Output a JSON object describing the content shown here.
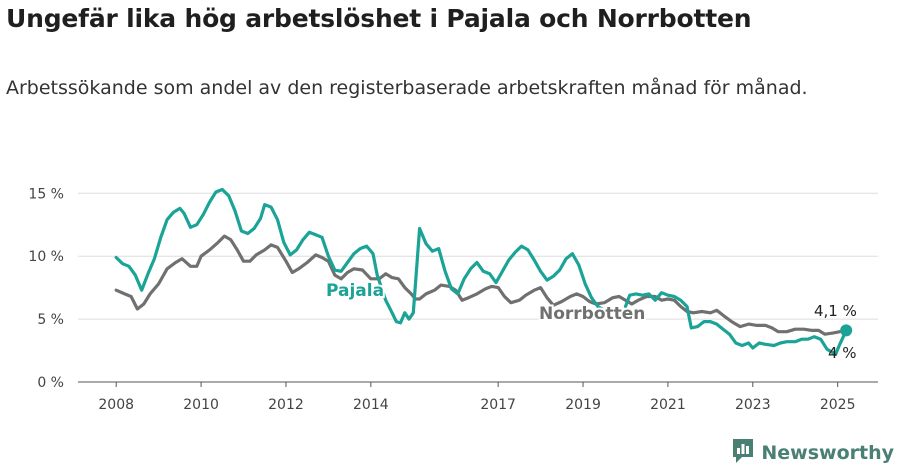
{
  "header": {
    "title": "Ungefär lika hög arbetslöshet i Pajala och Norrbotten",
    "subtitle": "Arbetssökande som andel av den registerbaserade arbetskraften månad för månad."
  },
  "brand": {
    "name": "Newsworthy",
    "icon": "newsworthy-logo-icon",
    "color": "#4a7f74"
  },
  "chart_data": {
    "type": "line",
    "x_unit": "year",
    "xlim": [
      2007.1,
      2025.95
    ],
    "ylim": [
      0,
      15.5
    ],
    "y_ticks": [
      {
        "value": 0,
        "label": "0 %"
      },
      {
        "value": 5,
        "label": "5 %"
      },
      {
        "value": 10,
        "label": "10 %"
      },
      {
        "value": 15,
        "label": "15 %"
      }
    ],
    "x_ticks": [
      {
        "value": 2008,
        "label": "2008"
      },
      {
        "value": 2010,
        "label": "2010"
      },
      {
        "value": 2012,
        "label": "2012"
      },
      {
        "value": 2014,
        "label": "2014"
      },
      {
        "value": 2017,
        "label": "2017"
      },
      {
        "value": 2019,
        "label": "2019"
      },
      {
        "value": 2021,
        "label": "2021"
      },
      {
        "value": 2023,
        "label": "2023"
      },
      {
        "value": 2025,
        "label": "2025"
      }
    ],
    "grid": "horizontal",
    "series": [
      {
        "name": "Norrbotten",
        "color": "#707070",
        "end_label": "4 %",
        "points": [
          [
            2008.0,
            7.3
          ],
          [
            2008.2,
            7.0
          ],
          [
            2008.35,
            6.8
          ],
          [
            2008.5,
            5.8
          ],
          [
            2008.65,
            6.2
          ],
          [
            2008.8,
            7.0
          ],
          [
            2009.0,
            7.8
          ],
          [
            2009.2,
            9.0
          ],
          [
            2009.4,
            9.5
          ],
          [
            2009.55,
            9.8
          ],
          [
            2009.75,
            9.2
          ],
          [
            2009.9,
            9.2
          ],
          [
            2010.0,
            10.0
          ],
          [
            2010.2,
            10.5
          ],
          [
            2010.4,
            11.1
          ],
          [
            2010.55,
            11.6
          ],
          [
            2010.7,
            11.3
          ],
          [
            2010.85,
            10.5
          ],
          [
            2011.0,
            9.6
          ],
          [
            2011.15,
            9.6
          ],
          [
            2011.3,
            10.1
          ],
          [
            2011.5,
            10.5
          ],
          [
            2011.65,
            10.9
          ],
          [
            2011.8,
            10.7
          ],
          [
            2012.0,
            9.6
          ],
          [
            2012.15,
            8.7
          ],
          [
            2012.3,
            9.0
          ],
          [
            2012.5,
            9.5
          ],
          [
            2012.7,
            10.1
          ],
          [
            2012.85,
            9.9
          ],
          [
            2013.0,
            9.6
          ],
          [
            2013.15,
            8.5
          ],
          [
            2013.3,
            8.2
          ],
          [
            2013.45,
            8.7
          ],
          [
            2013.6,
            9.0
          ],
          [
            2013.8,
            8.9
          ],
          [
            2014.0,
            8.2
          ],
          [
            2014.2,
            8.2
          ],
          [
            2014.35,
            8.6
          ],
          [
            2014.5,
            8.3
          ],
          [
            2014.65,
            8.2
          ],
          [
            2014.8,
            7.5
          ],
          [
            2014.95,
            7.0
          ],
          [
            2015.05,
            6.6
          ],
          [
            2015.15,
            6.6
          ],
          [
            2015.3,
            7.0
          ],
          [
            2015.5,
            7.3
          ],
          [
            2015.65,
            7.7
          ],
          [
            2015.85,
            7.6
          ],
          [
            2016.0,
            7.3
          ],
          [
            2016.15,
            6.5
          ],
          [
            2016.3,
            6.7
          ],
          [
            2016.5,
            7.0
          ],
          [
            2016.7,
            7.4
          ],
          [
            2016.85,
            7.6
          ],
          [
            2017.0,
            7.5
          ],
          [
            2017.15,
            6.8
          ],
          [
            2017.3,
            6.3
          ],
          [
            2017.5,
            6.5
          ],
          [
            2017.65,
            6.9
          ],
          [
            2017.85,
            7.3
          ],
          [
            2018.0,
            7.5
          ],
          [
            2018.15,
            6.7
          ],
          [
            2018.3,
            6.1
          ],
          [
            2018.5,
            6.4
          ],
          [
            2018.7,
            6.8
          ],
          [
            2018.85,
            7.0
          ],
          [
            2019.0,
            6.8
          ],
          [
            2019.15,
            6.4
          ],
          [
            2019.3,
            6.2
          ],
          [
            2019.5,
            6.3
          ],
          [
            2019.7,
            6.7
          ],
          [
            2019.85,
            6.8
          ],
          [
            2020.0,
            6.5
          ],
          [
            2020.15,
            6.2
          ],
          [
            2020.3,
            6.5
          ],
          [
            2020.5,
            6.8
          ],
          [
            2020.7,
            6.8
          ],
          [
            2020.85,
            6.5
          ],
          [
            2021.0,
            6.6
          ],
          [
            2021.15,
            6.5
          ],
          [
            2021.3,
            6.0
          ],
          [
            2021.45,
            5.6
          ],
          [
            2021.6,
            5.5
          ],
          [
            2021.8,
            5.6
          ],
          [
            2022.0,
            5.5
          ],
          [
            2022.15,
            5.7
          ],
          [
            2022.3,
            5.3
          ],
          [
            2022.5,
            4.8
          ],
          [
            2022.7,
            4.4
          ],
          [
            2022.9,
            4.6
          ],
          [
            2023.1,
            4.5
          ],
          [
            2023.3,
            4.5
          ],
          [
            2023.45,
            4.3
          ],
          [
            2023.6,
            4.0
          ],
          [
            2023.8,
            4.0
          ],
          [
            2024.0,
            4.2
          ],
          [
            2024.2,
            4.2
          ],
          [
            2024.4,
            4.1
          ],
          [
            2024.55,
            4.1
          ],
          [
            2024.7,
            3.8
          ],
          [
            2024.9,
            3.9
          ],
          [
            2025.05,
            4.0
          ]
        ]
      },
      {
        "name": "Pajala",
        "color": "#1aa396",
        "end_label": "4,1 %",
        "points": [
          [
            2008.0,
            9.9
          ],
          [
            2008.15,
            9.4
          ],
          [
            2008.3,
            9.2
          ],
          [
            2008.45,
            8.5
          ],
          [
            2008.6,
            7.3
          ],
          [
            2008.75,
            8.6
          ],
          [
            2008.9,
            9.8
          ],
          [
            2009.05,
            11.5
          ],
          [
            2009.2,
            12.9
          ],
          [
            2009.35,
            13.5
          ],
          [
            2009.5,
            13.8
          ],
          [
            2009.6,
            13.4
          ],
          [
            2009.75,
            12.3
          ],
          [
            2009.9,
            12.5
          ],
          [
            2010.05,
            13.3
          ],
          [
            2010.2,
            14.3
          ],
          [
            2010.35,
            15.1
          ],
          [
            2010.5,
            15.3
          ],
          [
            2010.65,
            14.8
          ],
          [
            2010.8,
            13.6
          ],
          [
            2010.95,
            12.0
          ],
          [
            2011.1,
            11.8
          ],
          [
            2011.25,
            12.2
          ],
          [
            2011.4,
            13.0
          ],
          [
            2011.5,
            14.1
          ],
          [
            2011.65,
            13.9
          ],
          [
            2011.8,
            12.9
          ],
          [
            2011.95,
            11.1
          ],
          [
            2012.1,
            10.1
          ],
          [
            2012.25,
            10.5
          ],
          [
            2012.4,
            11.3
          ],
          [
            2012.55,
            11.9
          ],
          [
            2012.7,
            11.7
          ],
          [
            2012.85,
            11.5
          ],
          [
            2013.0,
            10.0
          ],
          [
            2013.15,
            8.9
          ],
          [
            2013.3,
            8.8
          ],
          [
            2013.45,
            9.5
          ],
          [
            2013.6,
            10.2
          ],
          [
            2013.75,
            10.6
          ],
          [
            2013.9,
            10.8
          ],
          [
            2014.05,
            10.2
          ],
          [
            2014.15,
            8.5
          ],
          [
            2014.35,
            6.5
          ],
          [
            2014.5,
            5.5
          ],
          [
            2014.6,
            4.8
          ],
          [
            2014.7,
            4.7
          ],
          [
            2014.8,
            5.5
          ],
          [
            2014.9,
            5.0
          ],
          [
            2015.0,
            5.5
          ],
          [
            2015.15,
            12.2
          ],
          [
            2015.3,
            11.0
          ],
          [
            2015.45,
            10.4
          ],
          [
            2015.6,
            10.6
          ],
          [
            2015.75,
            8.8
          ],
          [
            2015.9,
            7.4
          ],
          [
            2016.05,
            7.0
          ],
          [
            2016.2,
            8.2
          ],
          [
            2016.35,
            9.0
          ],
          [
            2016.5,
            9.5
          ],
          [
            2016.65,
            8.8
          ],
          [
            2016.8,
            8.6
          ],
          [
            2016.95,
            7.9
          ],
          [
            2017.1,
            8.8
          ],
          [
            2017.25,
            9.7
          ],
          [
            2017.4,
            10.3
          ],
          [
            2017.55,
            10.8
          ],
          [
            2017.7,
            10.5
          ],
          [
            2017.85,
            9.7
          ],
          [
            2018.0,
            8.8
          ],
          [
            2018.15,
            8.1
          ],
          [
            2018.3,
            8.4
          ],
          [
            2018.45,
            8.9
          ],
          [
            2018.6,
            9.8
          ],
          [
            2018.75,
            10.2
          ],
          [
            2018.9,
            9.3
          ],
          [
            2019.05,
            7.8
          ],
          [
            2019.2,
            6.7
          ],
          [
            2019.35,
            6.0
          ],
          [
            2019.45,
            5.8
          ],
          [
            2020.0,
            6.0
          ],
          [
            2020.1,
            6.9
          ],
          [
            2020.25,
            7.0
          ],
          [
            2020.4,
            6.9
          ],
          [
            2020.55,
            7.0
          ],
          [
            2020.7,
            6.5
          ],
          [
            2020.85,
            7.1
          ],
          [
            2021.0,
            6.9
          ],
          [
            2021.15,
            6.8
          ],
          [
            2021.3,
            6.5
          ],
          [
            2021.45,
            6.0
          ],
          [
            2021.55,
            4.3
          ],
          [
            2021.7,
            4.4
          ],
          [
            2021.85,
            4.8
          ],
          [
            2022.0,
            4.8
          ],
          [
            2022.15,
            4.6
          ],
          [
            2022.3,
            4.2
          ],
          [
            2022.45,
            3.8
          ],
          [
            2022.6,
            3.1
          ],
          [
            2022.75,
            2.9
          ],
          [
            2022.9,
            3.1
          ],
          [
            2023.0,
            2.7
          ],
          [
            2023.15,
            3.1
          ],
          [
            2023.3,
            3.0
          ],
          [
            2023.5,
            2.9
          ],
          [
            2023.65,
            3.1
          ],
          [
            2023.8,
            3.2
          ],
          [
            2024.0,
            3.2
          ],
          [
            2024.15,
            3.4
          ],
          [
            2024.3,
            3.4
          ],
          [
            2024.45,
            3.6
          ],
          [
            2024.6,
            3.4
          ],
          [
            2024.75,
            2.6
          ],
          [
            2024.85,
            2.4
          ],
          [
            2024.95,
            2.2
          ],
          [
            2025.05,
            3.0
          ],
          [
            2025.2,
            4.1
          ]
        ]
      }
    ]
  }
}
